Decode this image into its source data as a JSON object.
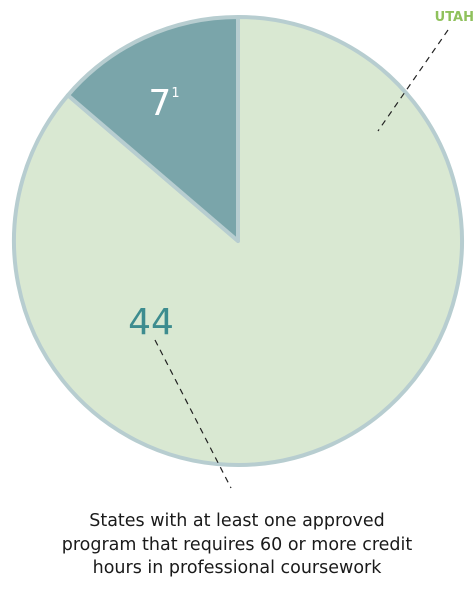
{
  "chart_data": {
    "type": "pie",
    "slices": [
      {
        "label": "44",
        "value": 44,
        "color": "#d9e8d2"
      },
      {
        "label": "7",
        "footnote": "1",
        "value": 7,
        "color": "#7aa5aa"
      }
    ],
    "annotations": {
      "utah": "UTAH",
      "caption": [
        "States with at least one approved",
        "program that requires 60 or more credit",
        "hours in professional coursework"
      ]
    },
    "colors": {
      "stroke": "#b7cdd0",
      "large_value_text": "#3d8c8f",
      "small_value_text": "#ffffff",
      "utah_text": "#8fc15c",
      "leader": "#222222"
    }
  }
}
